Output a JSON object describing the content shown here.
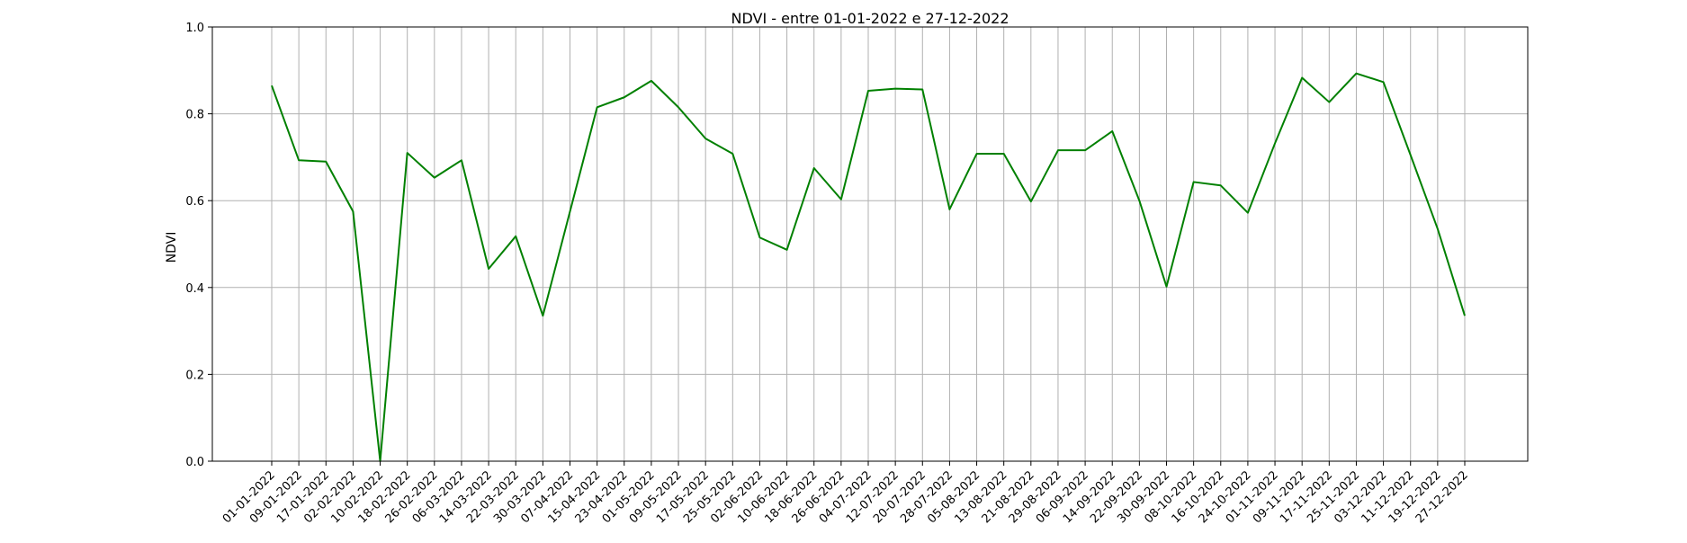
{
  "chart_data": {
    "type": "line",
    "title": "NDVI - entre 01-01-2022 e 27-12-2022",
    "xlabel": "",
    "ylabel": "NDVI",
    "ylim": [
      0,
      1
    ],
    "yticks": [
      "0.0",
      "0.2",
      "0.4",
      "0.6",
      "0.8",
      "1.0"
    ],
    "grid": true,
    "categories": [
      "01-01-2022",
      "09-01-2022",
      "17-01-2022",
      "02-02-2022",
      "10-02-2022",
      "18-02-2022",
      "26-02-2022",
      "06-03-2022",
      "14-03-2022",
      "22-03-2022",
      "30-03-2022",
      "07-04-2022",
      "15-04-2022",
      "23-04-2022",
      "01-05-2022",
      "09-05-2022",
      "17-05-2022",
      "25-05-2022",
      "02-06-2022",
      "10-06-2022",
      "18-06-2022",
      "26-06-2022",
      "04-07-2022",
      "12-07-2022",
      "20-07-2022",
      "28-07-2022",
      "05-08-2022",
      "13-08-2022",
      "21-08-2022",
      "29-08-2022",
      "06-09-2022",
      "14-09-2022",
      "22-09-2022",
      "30-09-2022",
      "08-10-2022",
      "16-10-2022",
      "24-10-2022",
      "01-11-2022",
      "09-11-2022",
      "17-11-2022",
      "25-11-2022",
      "03-12-2022",
      "11-12-2022",
      "19-12-2022",
      "27-12-2022"
    ],
    "series": [
      {
        "name": "",
        "color": "#008000",
        "values": [
          0.865,
          0.693,
          0.69,
          0.575,
          0.0,
          0.71,
          0.653,
          0.693,
          0.443,
          0.518,
          0.335,
          0.575,
          0.815,
          0.838,
          0.876,
          0.815,
          0.743,
          0.708,
          0.515,
          0.487,
          0.675,
          0.603,
          0.853,
          0.858,
          0.856,
          0.58,
          0.708,
          0.708,
          0.598,
          0.716,
          0.716,
          0.76,
          0.6,
          0.402,
          0.643,
          0.635,
          0.572,
          0.732,
          0.883,
          0.827,
          0.893,
          0.873,
          0.705,
          0.535,
          0.335
        ]
      }
    ]
  }
}
